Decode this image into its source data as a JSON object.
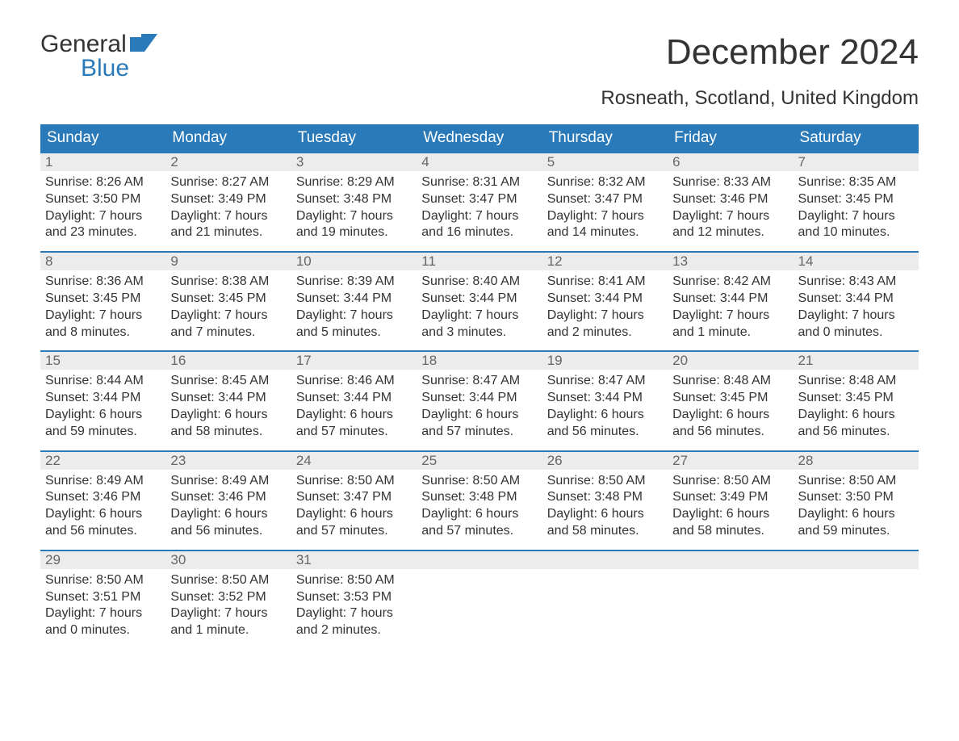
{
  "logo": {
    "word1": "General",
    "word2": "Blue",
    "brand_color": "#2a7ab9"
  },
  "title": "December 2024",
  "location": "Rosneath, Scotland, United Kingdom",
  "styling": {
    "header_bg": "#2a7ab9",
    "header_text": "#ffffff",
    "daynum_bg": "#ececec",
    "daynum_text": "#666666",
    "daynum_border": "#2a7ab9",
    "body_text": "#333333",
    "background": "#ffffff",
    "title_fontsize": 44,
    "location_fontsize": 24,
    "weekday_fontsize": 19,
    "daybody_fontsize": 16
  },
  "weekdays": [
    "Sunday",
    "Monday",
    "Tuesday",
    "Wednesday",
    "Thursday",
    "Friday",
    "Saturday"
  ],
  "weeks": [
    [
      {
        "n": "1",
        "sunrise": "Sunrise: 8:26 AM",
        "sunset": "Sunset: 3:50 PM",
        "d1": "Daylight: 7 hours",
        "d2": "and 23 minutes."
      },
      {
        "n": "2",
        "sunrise": "Sunrise: 8:27 AM",
        "sunset": "Sunset: 3:49 PM",
        "d1": "Daylight: 7 hours",
        "d2": "and 21 minutes."
      },
      {
        "n": "3",
        "sunrise": "Sunrise: 8:29 AM",
        "sunset": "Sunset: 3:48 PM",
        "d1": "Daylight: 7 hours",
        "d2": "and 19 minutes."
      },
      {
        "n": "4",
        "sunrise": "Sunrise: 8:31 AM",
        "sunset": "Sunset: 3:47 PM",
        "d1": "Daylight: 7 hours",
        "d2": "and 16 minutes."
      },
      {
        "n": "5",
        "sunrise": "Sunrise: 8:32 AM",
        "sunset": "Sunset: 3:47 PM",
        "d1": "Daylight: 7 hours",
        "d2": "and 14 minutes."
      },
      {
        "n": "6",
        "sunrise": "Sunrise: 8:33 AM",
        "sunset": "Sunset: 3:46 PM",
        "d1": "Daylight: 7 hours",
        "d2": "and 12 minutes."
      },
      {
        "n": "7",
        "sunrise": "Sunrise: 8:35 AM",
        "sunset": "Sunset: 3:45 PM",
        "d1": "Daylight: 7 hours",
        "d2": "and 10 minutes."
      }
    ],
    [
      {
        "n": "8",
        "sunrise": "Sunrise: 8:36 AM",
        "sunset": "Sunset: 3:45 PM",
        "d1": "Daylight: 7 hours",
        "d2": "and 8 minutes."
      },
      {
        "n": "9",
        "sunrise": "Sunrise: 8:38 AM",
        "sunset": "Sunset: 3:45 PM",
        "d1": "Daylight: 7 hours",
        "d2": "and 7 minutes."
      },
      {
        "n": "10",
        "sunrise": "Sunrise: 8:39 AM",
        "sunset": "Sunset: 3:44 PM",
        "d1": "Daylight: 7 hours",
        "d2": "and 5 minutes."
      },
      {
        "n": "11",
        "sunrise": "Sunrise: 8:40 AM",
        "sunset": "Sunset: 3:44 PM",
        "d1": "Daylight: 7 hours",
        "d2": "and 3 minutes."
      },
      {
        "n": "12",
        "sunrise": "Sunrise: 8:41 AM",
        "sunset": "Sunset: 3:44 PM",
        "d1": "Daylight: 7 hours",
        "d2": "and 2 minutes."
      },
      {
        "n": "13",
        "sunrise": "Sunrise: 8:42 AM",
        "sunset": "Sunset: 3:44 PM",
        "d1": "Daylight: 7 hours",
        "d2": "and 1 minute."
      },
      {
        "n": "14",
        "sunrise": "Sunrise: 8:43 AM",
        "sunset": "Sunset: 3:44 PM",
        "d1": "Daylight: 7 hours",
        "d2": "and 0 minutes."
      }
    ],
    [
      {
        "n": "15",
        "sunrise": "Sunrise: 8:44 AM",
        "sunset": "Sunset: 3:44 PM",
        "d1": "Daylight: 6 hours",
        "d2": "and 59 minutes."
      },
      {
        "n": "16",
        "sunrise": "Sunrise: 8:45 AM",
        "sunset": "Sunset: 3:44 PM",
        "d1": "Daylight: 6 hours",
        "d2": "and 58 minutes."
      },
      {
        "n": "17",
        "sunrise": "Sunrise: 8:46 AM",
        "sunset": "Sunset: 3:44 PM",
        "d1": "Daylight: 6 hours",
        "d2": "and 57 minutes."
      },
      {
        "n": "18",
        "sunrise": "Sunrise: 8:47 AM",
        "sunset": "Sunset: 3:44 PM",
        "d1": "Daylight: 6 hours",
        "d2": "and 57 minutes."
      },
      {
        "n": "19",
        "sunrise": "Sunrise: 8:47 AM",
        "sunset": "Sunset: 3:44 PM",
        "d1": "Daylight: 6 hours",
        "d2": "and 56 minutes."
      },
      {
        "n": "20",
        "sunrise": "Sunrise: 8:48 AM",
        "sunset": "Sunset: 3:45 PM",
        "d1": "Daylight: 6 hours",
        "d2": "and 56 minutes."
      },
      {
        "n": "21",
        "sunrise": "Sunrise: 8:48 AM",
        "sunset": "Sunset: 3:45 PM",
        "d1": "Daylight: 6 hours",
        "d2": "and 56 minutes."
      }
    ],
    [
      {
        "n": "22",
        "sunrise": "Sunrise: 8:49 AM",
        "sunset": "Sunset: 3:46 PM",
        "d1": "Daylight: 6 hours",
        "d2": "and 56 minutes."
      },
      {
        "n": "23",
        "sunrise": "Sunrise: 8:49 AM",
        "sunset": "Sunset: 3:46 PM",
        "d1": "Daylight: 6 hours",
        "d2": "and 56 minutes."
      },
      {
        "n": "24",
        "sunrise": "Sunrise: 8:50 AM",
        "sunset": "Sunset: 3:47 PM",
        "d1": "Daylight: 6 hours",
        "d2": "and 57 minutes."
      },
      {
        "n": "25",
        "sunrise": "Sunrise: 8:50 AM",
        "sunset": "Sunset: 3:48 PM",
        "d1": "Daylight: 6 hours",
        "d2": "and 57 minutes."
      },
      {
        "n": "26",
        "sunrise": "Sunrise: 8:50 AM",
        "sunset": "Sunset: 3:48 PM",
        "d1": "Daylight: 6 hours",
        "d2": "and 58 minutes."
      },
      {
        "n": "27",
        "sunrise": "Sunrise: 8:50 AM",
        "sunset": "Sunset: 3:49 PM",
        "d1": "Daylight: 6 hours",
        "d2": "and 58 minutes."
      },
      {
        "n": "28",
        "sunrise": "Sunrise: 8:50 AM",
        "sunset": "Sunset: 3:50 PM",
        "d1": "Daylight: 6 hours",
        "d2": "and 59 minutes."
      }
    ],
    [
      {
        "n": "29",
        "sunrise": "Sunrise: 8:50 AM",
        "sunset": "Sunset: 3:51 PM",
        "d1": "Daylight: 7 hours",
        "d2": "and 0 minutes."
      },
      {
        "n": "30",
        "sunrise": "Sunrise: 8:50 AM",
        "sunset": "Sunset: 3:52 PM",
        "d1": "Daylight: 7 hours",
        "d2": "and 1 minute."
      },
      {
        "n": "31",
        "sunrise": "Sunrise: 8:50 AM",
        "sunset": "Sunset: 3:53 PM",
        "d1": "Daylight: 7 hours",
        "d2": "and 2 minutes."
      },
      {
        "n": "",
        "sunrise": "",
        "sunset": "",
        "d1": "",
        "d2": "",
        "empty": true
      },
      {
        "n": "",
        "sunrise": "",
        "sunset": "",
        "d1": "",
        "d2": "",
        "empty": true
      },
      {
        "n": "",
        "sunrise": "",
        "sunset": "",
        "d1": "",
        "d2": "",
        "empty": true
      },
      {
        "n": "",
        "sunrise": "",
        "sunset": "",
        "d1": "",
        "d2": "",
        "empty": true
      }
    ]
  ]
}
